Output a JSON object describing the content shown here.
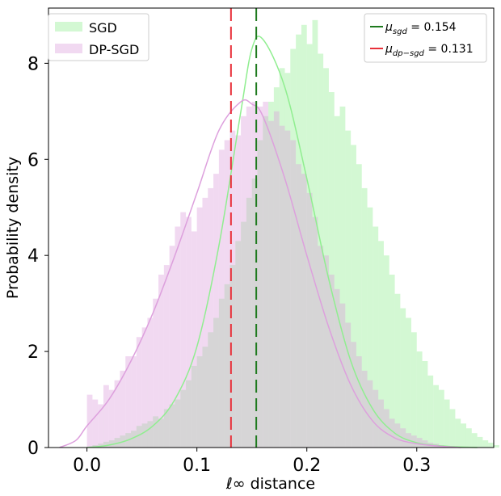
{
  "chart_data": {
    "type": "histogram",
    "title": "",
    "xlabel": "ℓ∞ distance",
    "ylabel": "Probability density",
    "xlim": [
      -0.035,
      0.37
    ],
    "ylim": [
      0,
      9.15
    ],
    "xticks": [
      0.0,
      0.1,
      0.2,
      0.3
    ],
    "xtick_labels": [
      "0.0",
      "0.1",
      "0.2",
      "0.3"
    ],
    "yticks": [
      0,
      2,
      4,
      6,
      8
    ],
    "ytick_labels": [
      "0",
      "2",
      "4",
      "6",
      "8"
    ],
    "grid": false,
    "bin_width": 0.005,
    "series": [
      {
        "name": "SGD",
        "color": "#90ee90",
        "bins_start": 0.005,
        "densities": [
          0.05,
          0.08,
          0.12,
          0.15,
          0.2,
          0.25,
          0.3,
          0.35,
          0.45,
          0.5,
          0.55,
          0.65,
          0.6,
          0.8,
          0.9,
          1.0,
          1.2,
          1.4,
          1.7,
          1.9,
          2.1,
          2.4,
          2.7,
          3.1,
          3.4,
          3.8,
          4.3,
          4.7,
          5.2,
          5.6,
          6.4,
          6.9,
          7.2,
          7.5,
          7.9,
          7.8,
          8.3,
          8.6,
          8.8,
          8.4,
          8.9,
          8.2,
          7.9,
          7.4,
          6.9,
          7.1,
          6.6,
          6.3,
          5.9,
          5.4,
          5.0,
          4.6,
          4.3,
          4.0,
          3.6,
          3.2,
          2.9,
          2.7,
          2.4,
          2.0,
          1.8,
          1.5,
          1.3,
          1.2,
          1.0,
          0.8,
          0.6,
          0.5,
          0.4,
          0.3,
          0.22,
          0.15,
          0.1,
          0.05
        ]
      },
      {
        "name": "DP-SGD",
        "color": "#dda0dd",
        "bins_start": 0.0,
        "densities": [
          1.1,
          1.0,
          0.9,
          1.3,
          1.2,
          1.4,
          1.6,
          1.9,
          1.9,
          2.3,
          2.5,
          2.7,
          3.1,
          3.6,
          3.8,
          4.2,
          4.6,
          4.9,
          4.8,
          4.5,
          5.0,
          5.2,
          5.4,
          5.7,
          6.2,
          6.4,
          6.6,
          6.5,
          6.9,
          7.1,
          7.2,
          7.1,
          7.2,
          6.8,
          7.0,
          6.7,
          6.6,
          6.4,
          5.9,
          5.7,
          5.3,
          4.8,
          4.2,
          4.0,
          3.6,
          3.3,
          3.0,
          2.6,
          2.2,
          1.9,
          1.6,
          1.4,
          1.2,
          1.0,
          0.8,
          0.6,
          0.5,
          0.4,
          0.3,
          0.25,
          0.2,
          0.15,
          0.1,
          0.08,
          0.05
        ]
      }
    ],
    "kde": [
      {
        "name": "SGD",
        "color": "#90ee90",
        "x": [
          0.0,
          0.02,
          0.04,
          0.06,
          0.08,
          0.1,
          0.12,
          0.14,
          0.15,
          0.16,
          0.18,
          0.2,
          0.22,
          0.24,
          0.26,
          0.28,
          0.3,
          0.32,
          0.34,
          0.355
        ],
        "y": [
          0.0,
          0.05,
          0.18,
          0.45,
          1.0,
          2.1,
          4.2,
          7.0,
          8.3,
          8.5,
          7.5,
          5.6,
          3.5,
          1.8,
          0.8,
          0.3,
          0.1,
          0.04,
          0.01,
          0.0
        ]
      },
      {
        "name": "DP-SGD",
        "color": "#dda0dd",
        "x": [
          -0.025,
          -0.01,
          0.0,
          0.02,
          0.04,
          0.06,
          0.08,
          0.1,
          0.12,
          0.14,
          0.15,
          0.16,
          0.18,
          0.2,
          0.22,
          0.24,
          0.26,
          0.28,
          0.3,
          0.32,
          0.34
        ],
        "y": [
          0.0,
          0.15,
          0.45,
          1.0,
          1.8,
          2.8,
          4.0,
          5.3,
          6.6,
          7.2,
          7.15,
          6.9,
          5.6,
          4.0,
          2.5,
          1.3,
          0.55,
          0.2,
          0.08,
          0.03,
          0.0
        ]
      }
    ],
    "vlines": [
      {
        "name": "μ_sgd",
        "x": 0.154,
        "color": "#1e7a1e",
        "style": "dashed"
      },
      {
        "name": "μ_dp-sgd",
        "x": 0.131,
        "color": "#e8303a",
        "style": "dashed"
      }
    ],
    "legend_left": {
      "placement": "top-left",
      "entries": [
        {
          "label": "SGD",
          "color": "#90ee90"
        },
        {
          "label": "DP-SGD",
          "color": "#dda0dd"
        }
      ]
    },
    "legend_right": {
      "placement": "top-right",
      "entries": [
        {
          "label_main": "μ",
          "label_sub": "sgd",
          "label_tail": " = 0.154",
          "color": "#1e7a1e"
        },
        {
          "label_main": "μ",
          "label_sub": "dp−sgd",
          "label_tail": " = 0.131",
          "color": "#e8303a"
        }
      ]
    }
  }
}
